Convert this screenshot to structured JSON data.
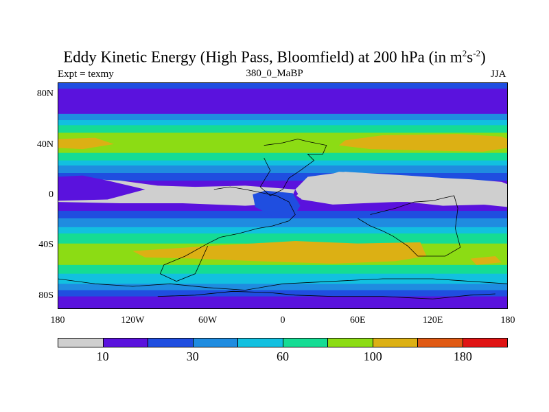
{
  "chart_data": {
    "type": "heatmap",
    "title_main": "Eddy Kinetic Energy (High Pass, Bloomfield) at 200 hPa (in m",
    "title_sup1": "2",
    "title_mid": "s",
    "title_sup2": "-2",
    "title_end": ")",
    "left_label": "Expt = texmy",
    "subtitle": "380_0_MaBP",
    "season": "JJA",
    "lat_ticks": [
      "80N",
      "40N",
      "0",
      "40S",
      "80S"
    ],
    "lat_values": [
      80,
      40,
      0,
      -40,
      -80
    ],
    "lon_ticks": [
      "180",
      "120W",
      "60W",
      "0",
      "60E",
      "120E",
      "180"
    ],
    "lon_values": [
      -180,
      -120,
      -60,
      0,
      60,
      120,
      180
    ],
    "lat_range": [
      -90,
      90
    ],
    "lon_range": [
      -180,
      180
    ],
    "colorbar_colors": [
      "#cfcfcf",
      "#5a12dd",
      "#1f4ee0",
      "#1f8ce0",
      "#12c0e0",
      "#15dc94",
      "#8cdc14",
      "#dcb014",
      "#e05a14",
      "#e01414"
    ],
    "colorbar_labels": [
      "10",
      "30",
      "60",
      "100",
      "180"
    ],
    "colorbar_label_after_box": [
      1,
      3,
      5,
      7,
      9
    ],
    "zonal_bands": [
      {
        "lat_top": 90,
        "lat_bottom": 85,
        "level": 2
      },
      {
        "lat_top": 85,
        "lat_bottom": 65,
        "level": 1
      },
      {
        "lat_top": 65,
        "lat_bottom": 60,
        "level": 3
      },
      {
        "lat_top": 60,
        "lat_bottom": 56,
        "level": 4
      },
      {
        "lat_top": 56,
        "lat_bottom": 50,
        "level": 5
      },
      {
        "lat_top": 50,
        "lat_bottom": 34,
        "level": 6
      },
      {
        "lat_top": 34,
        "lat_bottom": 28,
        "level": 5
      },
      {
        "lat_top": 28,
        "lat_bottom": 24,
        "level": 4
      },
      {
        "lat_top": 24,
        "lat_bottom": 18,
        "level": 3
      },
      {
        "lat_top": 18,
        "lat_bottom": 12,
        "level": 2
      },
      {
        "lat_top": 12,
        "lat_bottom": -12,
        "level": 1
      },
      {
        "lat_top": -12,
        "lat_bottom": -18,
        "level": 2
      },
      {
        "lat_top": -18,
        "lat_bottom": -25,
        "level": 3
      },
      {
        "lat_top": -25,
        "lat_bottom": -30,
        "level": 4
      },
      {
        "lat_top": -30,
        "lat_bottom": -38,
        "level": 5
      },
      {
        "lat_top": -38,
        "lat_bottom": -55,
        "level": 6
      },
      {
        "lat_top": -55,
        "lat_bottom": -62,
        "level": 5
      },
      {
        "lat_top": -62,
        "lat_bottom": -70,
        "level": 4
      },
      {
        "lat_top": -70,
        "lat_bottom": -75,
        "level": 3
      },
      {
        "lat_top": -75,
        "lat_bottom": -80,
        "level": 2
      },
      {
        "lat_top": -80,
        "lat_bottom": -90,
        "level": 1
      }
    ],
    "patches": [
      {
        "name": "nh-jet-west",
        "level": 7,
        "lon": [
          -180,
          -150,
          -135,
          -160,
          -180
        ],
        "lat": [
          45,
          46,
          41,
          37,
          38
        ]
      },
      {
        "name": "nh-jet-east",
        "level": 7,
        "lon": [
          50,
          80,
          140,
          175,
          180,
          180,
          160,
          110,
          70,
          45
        ],
        "lat": [
          44,
          48,
          49,
          47,
          45,
          38,
          35,
          36,
          37,
          40
        ]
      },
      {
        "name": "sh-jet",
        "level": 7,
        "lon": [
          -120,
          -60,
          10,
          60,
          110,
          115,
          90,
          40,
          -20,
          -70,
          -110
        ],
        "lat": [
          -44,
          -40,
          -36,
          -38,
          -37,
          -48,
          -52,
          -54,
          -52,
          -50,
          -49
        ]
      },
      {
        "name": "sh-jet-east",
        "level": 7,
        "lon": [
          150,
          170,
          175,
          155
        ],
        "lat": [
          -50,
          -48,
          -53,
          -55
        ]
      },
      {
        "name": "low-west",
        "level": 0,
        "lon": [
          -180,
          -150,
          -130,
          -100,
          -70,
          -30,
          10,
          5,
          -30,
          -80,
          -130,
          -180
        ],
        "lat": [
          10,
          13,
          12,
          8,
          7,
          8,
          5,
          -6,
          -8,
          -6,
          -6,
          -5
        ]
      },
      {
        "name": "low-west-tail",
        "level": 1,
        "lon": [
          -180,
          -160,
          -140,
          -110,
          -140,
          -180
        ],
        "lat": [
          15,
          16,
          12,
          5,
          -3,
          -4
        ]
      },
      {
        "name": "gray-tropics",
        "level": 0,
        "lon": [
          10,
          20,
          50,
          100,
          130,
          150,
          175,
          180,
          180,
          150,
          125,
          90,
          40,
          15
        ],
        "lat": [
          5,
          15,
          19,
          16,
          14,
          13,
          11,
          9,
          -9,
          -6,
          -3,
          -5,
          -7,
          -3
        ]
      },
      {
        "name": "gray-main",
        "level": 0,
        "lon": [
          11,
          22,
          45,
          65,
          75,
          90,
          150,
          168,
          172,
          165,
          128,
          100,
          70,
          40,
          24,
          14
        ],
        "lat": [
          0,
          12,
          19,
          18,
          13,
          11,
          11,
          8,
          -3,
          -7,
          -8,
          -5,
          -5,
          -3,
          -2,
          -2
        ]
      },
      {
        "name": "gray-island",
        "level": 0,
        "lon": [
          -20,
          -10,
          5,
          10,
          6,
          -8,
          -18
        ],
        "lat": [
          -2,
          0,
          -2,
          -8,
          -14,
          -13,
          -8
        ]
      },
      {
        "name": "dark-blue-ring",
        "level": 2,
        "lon": [
          -24,
          -14,
          8,
          14,
          9,
          -8,
          -22
        ],
        "lat": [
          1,
          4,
          2,
          -8,
          -16,
          -16,
          -9
        ]
      }
    ],
    "coastlines": [
      {
        "name": "continent-north",
        "lon": [
          -15,
          0,
          12,
          20,
          35,
          32,
          20,
          25,
          14,
          5,
          0,
          -10,
          -18,
          -10,
          -15
        ],
        "lat": [
          40,
          42,
          45,
          43,
          40,
          33,
          33,
          28,
          20,
          14,
          5,
          0,
          7,
          20,
          30
        ]
      },
      {
        "name": "continent-south",
        "lon": [
          -55,
          -42,
          -30,
          -20,
          -5,
          5,
          10,
          5,
          -8,
          -20,
          -35,
          -50,
          -60,
          -78,
          -95,
          -98,
          -85,
          -70,
          -60
        ],
        "lat": [
          5,
          7,
          5,
          3,
          0,
          -5,
          -15,
          -20,
          -24,
          -26,
          -30,
          -33,
          -38,
          -48,
          -55,
          -62,
          -68,
          -62,
          -40
        ]
      },
      {
        "name": "continent-east",
        "lon": [
          70,
          90,
          105,
          120,
          128,
          137,
          140,
          138,
          142,
          130,
          108,
          100,
          88,
          80,
          70,
          60
        ],
        "lat": [
          -15,
          -10,
          -5,
          -4,
          -2,
          0,
          -10,
          -26,
          -41,
          -48,
          -48,
          -40,
          -32,
          -28,
          -24,
          -18
        ]
      },
      {
        "name": "antarctic-coast",
        "lon": [
          -180,
          -150,
          -120,
          -90,
          -60,
          -30,
          0,
          40,
          80,
          120,
          150,
          180
        ],
        "lat": [
          -66,
          -70,
          -72,
          -70,
          -73,
          -75,
          -70,
          -68,
          -66,
          -66,
          -68,
          -70
        ]
      },
      {
        "name": "antarctic-inner",
        "lon": [
          -100,
          -70,
          -40,
          -10,
          10,
          40,
          80,
          120,
          150,
          170
        ],
        "lat": [
          -80,
          -79,
          -76,
          -77,
          -79,
          -80,
          -80,
          -82,
          -79,
          -78
        ]
      }
    ]
  }
}
